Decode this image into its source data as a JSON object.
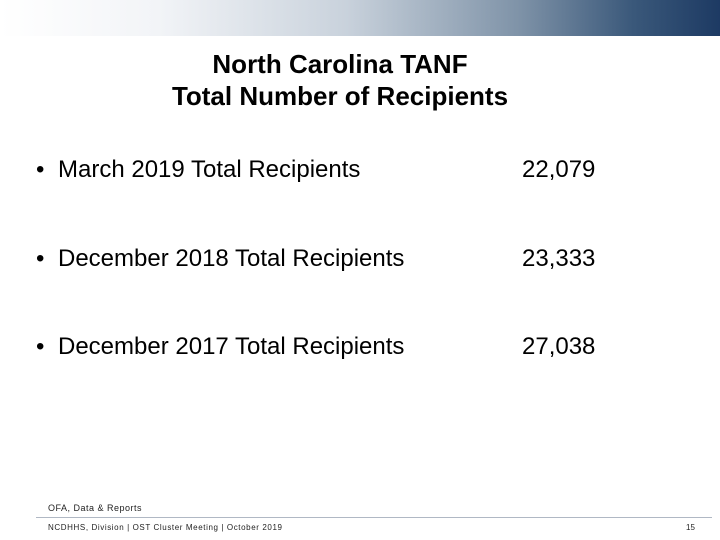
{
  "slide": {
    "title_line1": "North Carolina TANF",
    "title_line2": "Total Number of Recipients",
    "bullet_glyph": "•",
    "stats": [
      {
        "label": "March 2019 Total Recipients",
        "value": "22,079"
      },
      {
        "label": "December 2018 Total Recipients",
        "value": "23,333"
      },
      {
        "label": "December 2017 Total Recipients",
        "value": "27,038"
      }
    ]
  },
  "footer": {
    "source": "OFA, Data & Reports",
    "left_text": "NCDHHS, Division | OST Cluster Meeting | October 2019",
    "page_number": "15"
  }
}
